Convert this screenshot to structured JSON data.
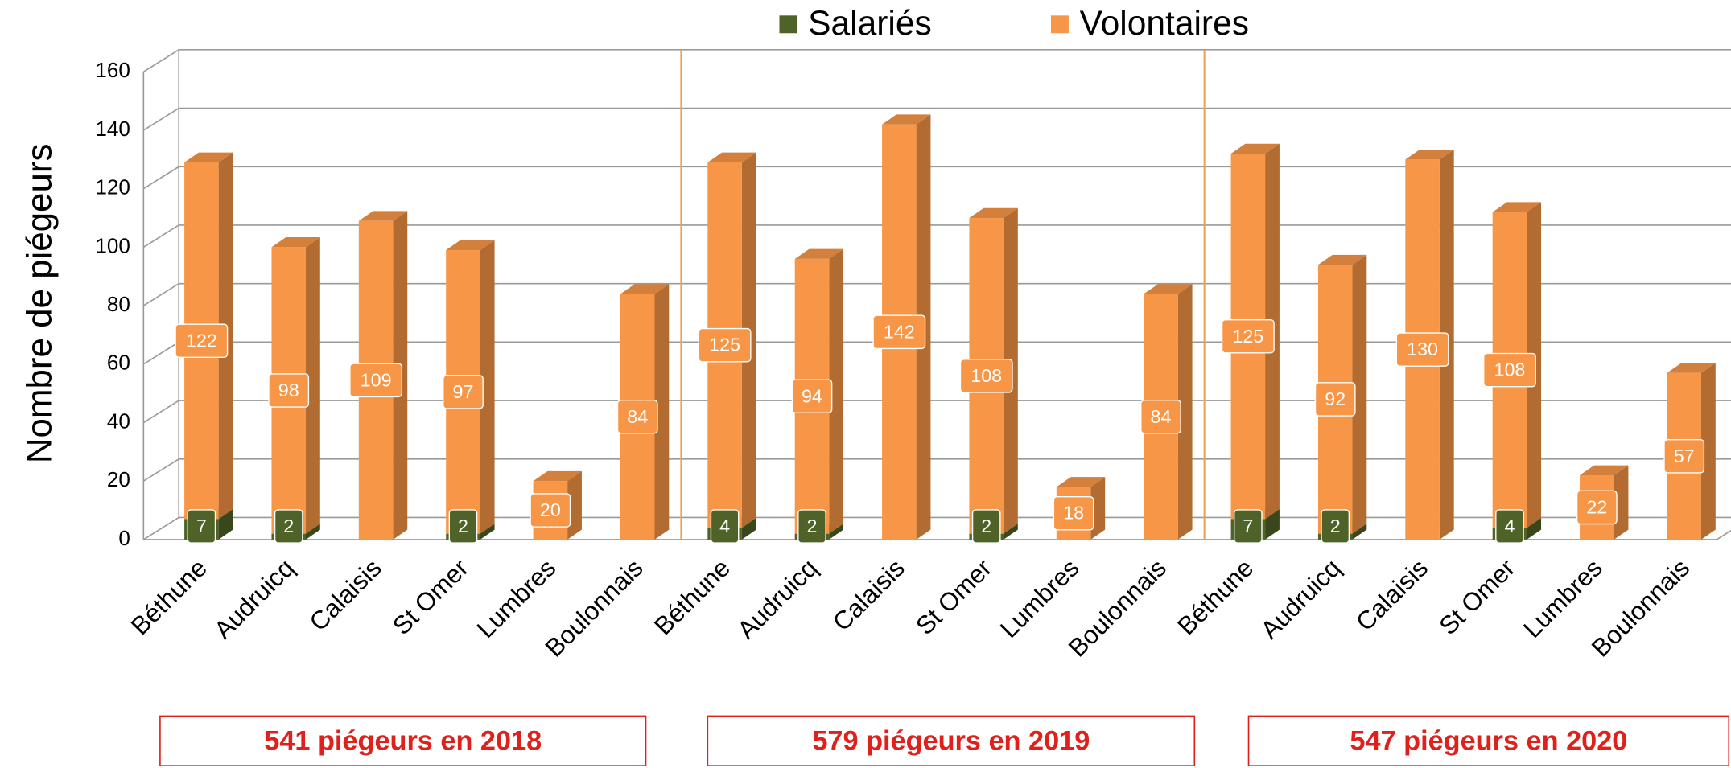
{
  "chart_data": {
    "type": "bar",
    "stacked": true,
    "y_label": "Nombre de piégeurs",
    "categories": [
      "Béthune",
      "Audruicq",
      "Calaisis",
      "St Omer",
      "Lumbres",
      "Boulonnais",
      "Béthune",
      "Audruicq",
      "Calaisis",
      "St Omer",
      "Lumbres",
      "Boulonnais",
      "Béthune",
      "Audruicq",
      "Calaisis",
      "St Omer",
      "Lumbres",
      "Boulonnais"
    ],
    "series": [
      {
        "name": "Salariés",
        "color": "#4f6228",
        "values": [
          7,
          2,
          null,
          2,
          null,
          null,
          4,
          2,
          null,
          2,
          null,
          null,
          7,
          2,
          null,
          4,
          null,
          null
        ]
      },
      {
        "name": "Volontaires",
        "color": "#f79646",
        "values": [
          122,
          98,
          109,
          97,
          20,
          84,
          125,
          94,
          142,
          108,
          18,
          84,
          125,
          92,
          130,
          108,
          22,
          57
        ]
      }
    ],
    "ylim": [
      0,
      160
    ],
    "yticks": [
      0,
      20,
      40,
      60,
      80,
      100,
      120,
      140,
      160
    ],
    "grid": true,
    "annotations": [
      "541 piégeurs en 2018",
      "579 piégeurs en 2019",
      "547 piégeurs en 2020"
    ]
  }
}
